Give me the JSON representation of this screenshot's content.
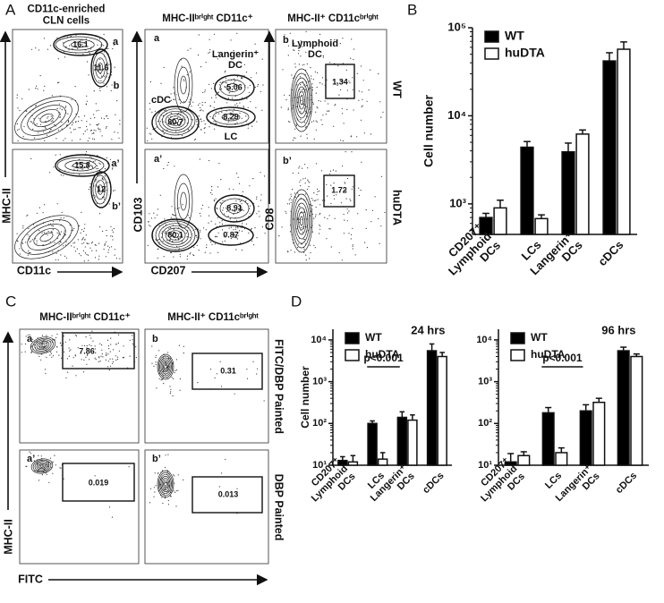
{
  "panel_labels": [
    "A",
    "B",
    "C",
    "D"
  ],
  "panel_a": {
    "left_title": "CD11c-enriched\nCLN cells",
    "middle_title": "MHC-IIᵇʳⁱᵍʰᵗ CD11c⁺",
    "right_title": "MHC-II⁺ CD11cᵇʳⁱᵍʰᵗ",
    "left_x_label": "CD11c",
    "left_y_label": "MHC-II",
    "middle_x_label": "CD207",
    "middle_y_label": "CD103",
    "right_y_label": "CD8",
    "row_labels": [
      "WT",
      "huDTA"
    ],
    "plots": [
      {
        "letters": [
          "a",
          "b"
        ],
        "gates": [
          "16.1",
          "11.6"
        ]
      },
      {
        "letters": [
          "a’",
          "b’"
        ],
        "gates": [
          "15.8",
          "12"
        ]
      },
      {
        "letter": "a",
        "gates": [
          "5.06",
          "80.7",
          "8.29"
        ],
        "names": [
          "Langerin⁺\nDC",
          "cDC",
          "LC"
        ]
      },
      {
        "letter": "a’",
        "gates": [
          "8.91",
          "80.1",
          "0.87"
        ]
      },
      {
        "letter": "b",
        "gates": [
          "1.34"
        ],
        "names": [
          "Lymphoid\nDC"
        ]
      },
      {
        "letter": "b’",
        "gates": [
          "1.72"
        ]
      }
    ]
  },
  "panel_c": {
    "left_title": "MHC-IIᵇʳⁱᵍʰᵗ CD11c⁺",
    "right_title": "MHC-II⁺ CD11cᵇʳⁱᵍʰᵗ",
    "x_label": "FITC",
    "y_label": "MHC-II",
    "row_labels": [
      "FITC/DBP Painted",
      "DBP Painted"
    ],
    "plots": [
      {
        "letter": "a",
        "gate": "7.86"
      },
      {
        "letter": "b",
        "gate": "0.31"
      },
      {
        "letter": "a’",
        "gate": "0.019"
      },
      {
        "letter": "b’",
        "gate": "0.013"
      }
    ]
  },
  "chart_data": [
    {
      "type": "bar",
      "y_label": "Cell number",
      "log_scale": true,
      "legend": "upper left",
      "categories": [
        "CD207⁺\nLymphoid\nDCs",
        "LCs",
        "Langerin⁺\nDCs",
        "cDCs"
      ],
      "series": [
        {
          "name": "WT",
          "color": "#000000",
          "values": [
            700,
            4400,
            3900,
            42000
          ],
          "errors": [
            80,
            700,
            1000,
            10000
          ]
        },
        {
          "name": "huDTA",
          "color": "#ffffff",
          "values": [
            900,
            680,
            6200,
            57000
          ],
          "errors": [
            200,
            70,
            700,
            12000
          ]
        }
      ],
      "ylim": [
        450,
        100000
      ],
      "yticks": [
        {
          "value": 1000,
          "label": "10³"
        },
        {
          "value": 10000,
          "label": "10⁴"
        },
        {
          "value": 100000,
          "label": "10⁵"
        }
      ]
    },
    {
      "type": "bar",
      "y_label": "Cell number",
      "log_scale": true,
      "legend": "upper left",
      "annotation": "24 hrs",
      "significance": "p<0.001",
      "categories": [
        "CD207⁺\nLymphoid\nDCs",
        "LCs",
        "Langerin⁺\nDCs",
        "cDCs"
      ],
      "series": [
        {
          "name": "WT",
          "color": "#000000",
          "values": [
            13,
            100,
            140,
            5500
          ],
          "errors": [
            3,
            15,
            50,
            2500
          ]
        },
        {
          "name": "huDTA",
          "color": "#ffffff",
          "values": [
            12,
            14,
            120,
            4000
          ],
          "errors": [
            5,
            6,
            40,
            1000
          ]
        }
      ],
      "ylim": [
        10,
        18000
      ],
      "yticks": [
        {
          "value": 10,
          "label": "10¹"
        },
        {
          "value": 100,
          "label": "10²"
        },
        {
          "value": 1000,
          "label": "10³"
        },
        {
          "value": 10000,
          "label": "10⁴"
        }
      ]
    },
    {
      "type": "bar",
      "log_scale": true,
      "legend": "upper left",
      "annotation": "96 hrs",
      "significance": "p<0.001",
      "categories": [
        "CD207⁺\nLymphoid\nDCs",
        "LCs",
        "Langerin⁺\nDCs",
        "cDCs"
      ],
      "series": [
        {
          "name": "WT",
          "color": "#000000",
          "values": [
            12,
            180,
            200,
            5500
          ],
          "errors": [
            7,
            60,
            80,
            1200
          ]
        },
        {
          "name": "huDTA",
          "color": "#ffffff",
          "values": [
            17,
            20,
            320,
            4000
          ],
          "errors": [
            4,
            6,
            80,
            600
          ]
        }
      ],
      "ylim": [
        10,
        18000
      ],
      "yticks": [
        {
          "value": 10,
          "label": "10¹"
        },
        {
          "value": 100,
          "label": "10²"
        },
        {
          "value": 1000,
          "label": "10³"
        },
        {
          "value": 10000,
          "label": "10⁴"
        }
      ]
    }
  ]
}
